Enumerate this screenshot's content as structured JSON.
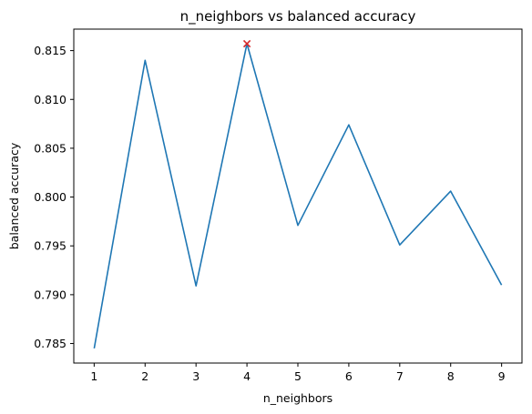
{
  "chart_data": {
    "type": "line",
    "title": "n_neighbors vs balanced accuracy",
    "xlabel": "n_neighbors",
    "ylabel": "balanced accuracy",
    "x": [
      1,
      2,
      3,
      4,
      5,
      6,
      7,
      8,
      9
    ],
    "series": [
      {
        "values": [
          0.7845,
          0.814,
          0.7909,
          0.8157,
          0.7971,
          0.8074,
          0.7951,
          0.8006,
          0.791
        ],
        "color": "#1f77b4"
      }
    ],
    "marker": {
      "x": 4,
      "y": 0.8157,
      "symbol": "x",
      "color": "#d62728"
    },
    "xticks": [
      1,
      2,
      3,
      4,
      5,
      6,
      7,
      8,
      9
    ],
    "yticks": [
      "0.785",
      "0.790",
      "0.795",
      "0.800",
      "0.805",
      "0.810",
      "0.815"
    ],
    "xlim": [
      0.6,
      9.4
    ],
    "ylim": [
      0.783,
      0.8172
    ],
    "grid": false,
    "legend": "none"
  }
}
